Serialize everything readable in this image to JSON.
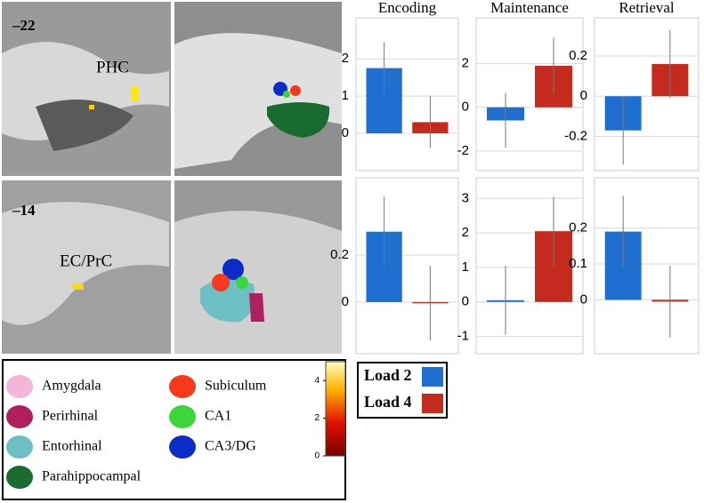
{
  "chart_data": [
    {
      "type": "bar",
      "title": "Encoding",
      "ylim": [
        -1,
        3.1
      ],
      "yticks": [
        0,
        1,
        2
      ],
      "grid": true,
      "series": [
        {
          "color": "#1f6fd1",
          "values": [
            1.75
          ],
          "errors": [
            0.7
          ]
        },
        {
          "color": "#c42a1e",
          "values": [
            0.3
          ],
          "errors": [
            0.7
          ]
        }
      ]
    },
    {
      "type": "bar",
      "title": "Maintenance",
      "ylim": [
        -2.9,
        4.1
      ],
      "yticks": [
        -2,
        0,
        2
      ],
      "grid": true,
      "series": [
        {
          "color": "#1f6fd1",
          "values": [
            -0.6
          ],
          "errors": [
            1.25
          ]
        },
        {
          "color": "#c42a1e",
          "values": [
            1.9
          ],
          "errors": [
            1.3
          ]
        }
      ]
    },
    {
      "type": "bar",
      "title": "Retrieval",
      "ylim": [
        -0.37,
        0.39
      ],
      "yticks": [
        -0.2,
        0,
        0.2
      ],
      "grid": true,
      "series": [
        {
          "color": "#1f6fd1",
          "values": [
            -0.17
          ],
          "errors": [
            0.17
          ]
        },
        {
          "color": "#c42a1e",
          "values": [
            0.16
          ],
          "errors": [
            0.17
          ]
        }
      ]
    },
    {
      "type": "bar",
      "ylim": [
        -0.22,
        0.53
      ],
      "yticks": [
        0,
        0.2
      ],
      "grid": true,
      "series": [
        {
          "color": "#1f6fd1",
          "values": [
            0.3
          ],
          "errors": [
            0.15
          ]
        },
        {
          "color": "#c42a1e",
          "values": [
            -0.005
          ],
          "errors": [
            0.16
          ]
        }
      ]
    },
    {
      "type": "bar",
      "ylim": [
        -1.5,
        3.6
      ],
      "yticks": [
        -1,
        0,
        1,
        2,
        3
      ],
      "grid": true,
      "series": [
        {
          "color": "#1f6fd1",
          "values": [
            0.05
          ],
          "errors": [
            1.0
          ]
        },
        {
          "color": "#c42a1e",
          "values": [
            2.05
          ],
          "errors": [
            1.0
          ]
        }
      ]
    },
    {
      "type": "bar",
      "ylim": [
        -0.15,
        0.34
      ],
      "yticks": [
        0,
        0.1,
        0.2
      ],
      "grid": true,
      "series": [
        {
          "color": "#1f6fd1",
          "values": [
            0.19
          ],
          "errors": [
            0.1
          ]
        },
        {
          "color": "#c42a1e",
          "values": [
            -0.005
          ],
          "errors": [
            0.1
          ]
        }
      ]
    }
  ],
  "legend": [
    {
      "name": "Load 2",
      "color": "#1f6fd1"
    },
    {
      "name": "Load 4",
      "color": "#c42a1e"
    }
  ],
  "brain_labels": [
    "–22",
    "PHC",
    "–14",
    "EC/PrC"
  ],
  "regions": [
    {
      "name": "Amygdala",
      "color": "#f2b6d8"
    },
    {
      "name": "Perirhinal",
      "color": "#b0205e"
    },
    {
      "name": "Entorhinal",
      "color": "#6cc0c4"
    },
    {
      "name": "Parahippocampal",
      "color": "#1a6b30"
    },
    {
      "name": "Subiculum",
      "color": "#f53a1e"
    },
    {
      "name": "CA1",
      "color": "#3ad63a"
    },
    {
      "name": "CA3/DG",
      "color": "#0c2cc8"
    }
  ],
  "colorbar": {
    "lim": [
      0,
      5
    ],
    "ticks": [
      0,
      2,
      4
    ]
  }
}
